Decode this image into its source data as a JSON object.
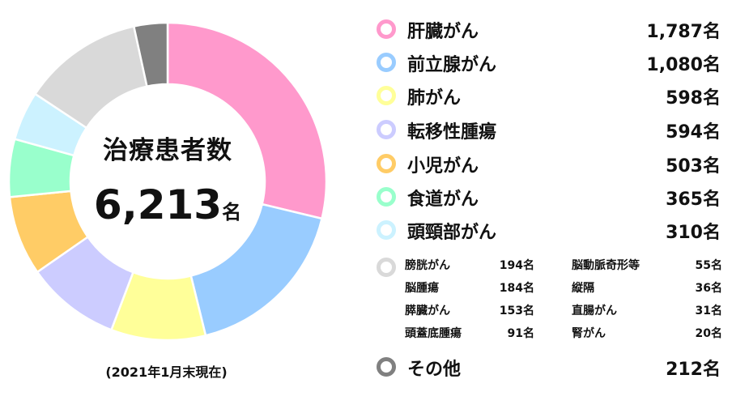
{
  "center": {
    "title": "治療患者数",
    "total": "6,213",
    "unit": "名"
  },
  "footnote": "(2021年1月末現在)",
  "legend_main": [
    {
      "label": "肝臓がん",
      "value": "1,787名",
      "color": "#FF99CC"
    },
    {
      "label": "前立腺がん",
      "value": "1,080名",
      "color": "#99CCFF"
    },
    {
      "label": "肺がん",
      "value": "598名",
      "color": "#FFFF99"
    },
    {
      "label": "転移性腫瘍",
      "value": "594名",
      "color": "#CCCCFF"
    },
    {
      "label": "小児がん",
      "value": "503名",
      "color": "#FFCC66"
    },
    {
      "label": "食道がん",
      "value": "365名",
      "color": "#99FFCC"
    },
    {
      "label": "頭頸部がん",
      "value": "310名",
      "color": "#CCF2FF"
    }
  ],
  "legend_small": {
    "color": "#D9D9D9",
    "items": [
      {
        "label": "膀胱がん",
        "value": "194名"
      },
      {
        "label": "脳腫瘍",
        "value": "184名"
      },
      {
        "label": "膵臓がん",
        "value": "153名"
      },
      {
        "label": "頭蓋底腫瘍",
        "value": "91名"
      },
      {
        "label": "脳動脈奇形等",
        "value": "55名"
      },
      {
        "label": "縦隔",
        "value": "36名"
      },
      {
        "label": "直腸がん",
        "value": "31名"
      },
      {
        "label": "腎がん",
        "value": "20名"
      }
    ]
  },
  "legend_other": {
    "label": "その他",
    "value": "212名",
    "color": "#808080"
  },
  "chart_data": {
    "type": "pie",
    "donut": true,
    "title": "治療患者数",
    "total": 6213,
    "categories": [
      "肝臓がん",
      "前立腺がん",
      "肺がん",
      "転移性腫瘍",
      "小児がん",
      "食道がん",
      "頭頸部がん",
      "膀胱がん・脳腫瘍・膵臓がん・頭蓋底腫瘍・脳動脈奇形等・縦隔・直腸がん・腎がん",
      "その他"
    ],
    "values": [
      1787,
      1080,
      598,
      594,
      503,
      365,
      310,
      764,
      212
    ],
    "colors": [
      "#FF99CC",
      "#99CCFF",
      "#FFFF99",
      "#CCCCFF",
      "#FFCC66",
      "#99FFCC",
      "#CCF2FF",
      "#D9D9D9",
      "#808080"
    ],
    "start": "top",
    "direction": "clockwise",
    "legend_position": "right"
  }
}
